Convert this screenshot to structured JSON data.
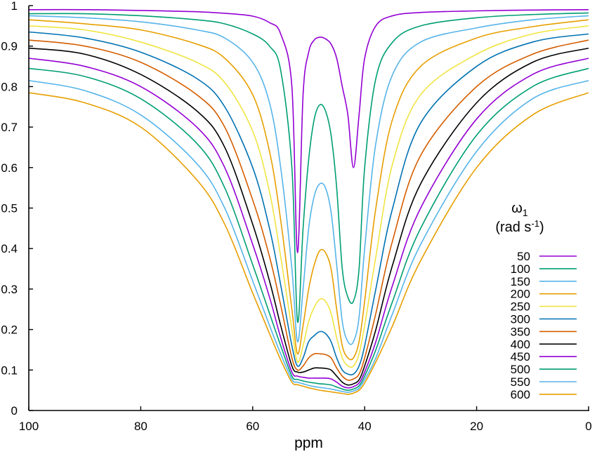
{
  "chart_data": {
    "type": "line",
    "title": "",
    "xlabel": "ppm",
    "ylabel": "",
    "xlim": [
      100,
      0
    ],
    "ylim": [
      0,
      1
    ],
    "x_reversed": true,
    "grid": false,
    "xticks": [
      100,
      80,
      60,
      40,
      20,
      0
    ],
    "yticks": [
      0,
      0.1,
      0.2,
      0.3,
      0.4,
      0.5,
      0.6,
      0.7,
      0.8,
      0.9,
      1
    ],
    "xtick_labels": [
      "100",
      "80",
      "60",
      "40",
      "20",
      "0"
    ],
    "ytick_labels": [
      "0",
      "0.1",
      "0.2",
      "0.3",
      "0.4",
      "0.5",
      "0.6",
      "0.7",
      "0.8",
      "0.9",
      "1"
    ],
    "legend": {
      "title_symbol": "ω",
      "title_sub": "1",
      "title_unit_prefix": "(rad s",
      "title_unit_sup": "-1",
      "title_unit_suffix": ")",
      "placement": "right"
    },
    "x": [
      100,
      90,
      80,
      70,
      65,
      60,
      57,
      55,
      53,
      52,
      51,
      50,
      49,
      48,
      47,
      46,
      45,
      44,
      43,
      42,
      41,
      40,
      38,
      35,
      30,
      20,
      10,
      0
    ],
    "series": [
      {
        "name": "50",
        "color": "#9400d3",
        "values": [
          0.99,
          0.99,
          0.988,
          0.985,
          0.981,
          0.974,
          0.958,
          0.93,
          0.8,
          0.39,
          0.78,
          0.885,
          0.915,
          0.922,
          0.918,
          0.905,
          0.87,
          0.8,
          0.73,
          0.6,
          0.73,
          0.87,
          0.95,
          0.975,
          0.983,
          0.987,
          0.989,
          0.99
        ]
      },
      {
        "name": "100",
        "color": "#009e73",
        "values": [
          0.98,
          0.98,
          0.975,
          0.965,
          0.955,
          0.93,
          0.9,
          0.84,
          0.6,
          0.22,
          0.45,
          0.62,
          0.72,
          0.755,
          0.74,
          0.68,
          0.55,
          0.35,
          0.28,
          0.27,
          0.35,
          0.6,
          0.82,
          0.91,
          0.95,
          0.97,
          0.978,
          0.982
        ]
      },
      {
        "name": "150",
        "color": "#56b4e9",
        "values": [
          0.975,
          0.97,
          0.96,
          0.94,
          0.92,
          0.86,
          0.76,
          0.6,
          0.35,
          0.17,
          0.3,
          0.45,
          0.53,
          0.56,
          0.55,
          0.49,
          0.36,
          0.22,
          0.17,
          0.17,
          0.23,
          0.4,
          0.66,
          0.83,
          0.91,
          0.945,
          0.965,
          0.975
        ]
      },
      {
        "name": "200",
        "color": "#e69f00",
        "values": [
          0.965,
          0.955,
          0.94,
          0.905,
          0.87,
          0.78,
          0.64,
          0.47,
          0.25,
          0.14,
          0.21,
          0.3,
          0.36,
          0.395,
          0.39,
          0.35,
          0.25,
          0.16,
          0.13,
          0.13,
          0.17,
          0.27,
          0.5,
          0.72,
          0.85,
          0.92,
          0.948,
          0.965
        ]
      },
      {
        "name": "250",
        "color": "#f0e442",
        "values": [
          0.95,
          0.94,
          0.91,
          0.86,
          0.81,
          0.69,
          0.54,
          0.38,
          0.2,
          0.12,
          0.16,
          0.22,
          0.255,
          0.275,
          0.27,
          0.24,
          0.18,
          0.13,
          0.11,
          0.11,
          0.14,
          0.21,
          0.38,
          0.61,
          0.78,
          0.88,
          0.93,
          0.95
        ]
      },
      {
        "name": "300",
        "color": "#0072b2",
        "values": [
          0.935,
          0.92,
          0.885,
          0.82,
          0.75,
          0.6,
          0.45,
          0.31,
          0.16,
          0.11,
          0.13,
          0.17,
          0.185,
          0.195,
          0.19,
          0.17,
          0.13,
          0.1,
          0.09,
          0.09,
          0.11,
          0.16,
          0.3,
          0.5,
          0.71,
          0.85,
          0.91,
          0.93
        ]
      },
      {
        "name": "350",
        "color": "#d55e00",
        "values": [
          0.915,
          0.9,
          0.86,
          0.78,
          0.7,
          0.52,
          0.38,
          0.26,
          0.13,
          0.1,
          0.11,
          0.13,
          0.14,
          0.14,
          0.138,
          0.13,
          0.105,
          0.085,
          0.075,
          0.078,
          0.09,
          0.13,
          0.24,
          0.42,
          0.63,
          0.8,
          0.88,
          0.915
        ]
      },
      {
        "name": "400",
        "color": "#000000",
        "values": [
          0.895,
          0.88,
          0.83,
          0.74,
          0.65,
          0.46,
          0.32,
          0.21,
          0.11,
          0.095,
          0.095,
          0.1,
          0.105,
          0.105,
          0.104,
          0.1,
          0.085,
          0.07,
          0.063,
          0.066,
          0.076,
          0.11,
          0.2,
          0.36,
          0.56,
          0.76,
          0.86,
          0.895
        ]
      },
      {
        "name": "450",
        "color": "#9400d3",
        "values": [
          0.87,
          0.85,
          0.8,
          0.7,
          0.6,
          0.41,
          0.28,
          0.18,
          0.095,
          0.085,
          0.082,
          0.08,
          0.08,
          0.08,
          0.08,
          0.078,
          0.07,
          0.06,
          0.056,
          0.059,
          0.068,
          0.095,
          0.17,
          0.31,
          0.5,
          0.72,
          0.83,
          0.87
        ]
      },
      {
        "name": "500",
        "color": "#009e73",
        "values": [
          0.845,
          0.825,
          0.77,
          0.66,
          0.55,
          0.36,
          0.24,
          0.16,
          0.085,
          0.077,
          0.073,
          0.07,
          0.068,
          0.066,
          0.065,
          0.063,
          0.058,
          0.053,
          0.05,
          0.053,
          0.061,
          0.085,
          0.15,
          0.27,
          0.45,
          0.68,
          0.8,
          0.845
        ]
      },
      {
        "name": "550",
        "color": "#56b4e9",
        "values": [
          0.815,
          0.79,
          0.73,
          0.61,
          0.5,
          0.32,
          0.21,
          0.14,
          0.077,
          0.07,
          0.066,
          0.062,
          0.059,
          0.057,
          0.055,
          0.053,
          0.05,
          0.047,
          0.045,
          0.048,
          0.055,
          0.076,
          0.13,
          0.24,
          0.41,
          0.64,
          0.77,
          0.815
        ]
      },
      {
        "name": "600",
        "color": "#e69f00",
        "values": [
          0.785,
          0.76,
          0.7,
          0.57,
          0.46,
          0.29,
          0.19,
          0.125,
          0.07,
          0.064,
          0.06,
          0.056,
          0.053,
          0.05,
          0.048,
          0.046,
          0.044,
          0.042,
          0.04,
          0.043,
          0.05,
          0.068,
          0.12,
          0.21,
          0.37,
          0.6,
          0.73,
          0.785
        ]
      }
    ]
  }
}
